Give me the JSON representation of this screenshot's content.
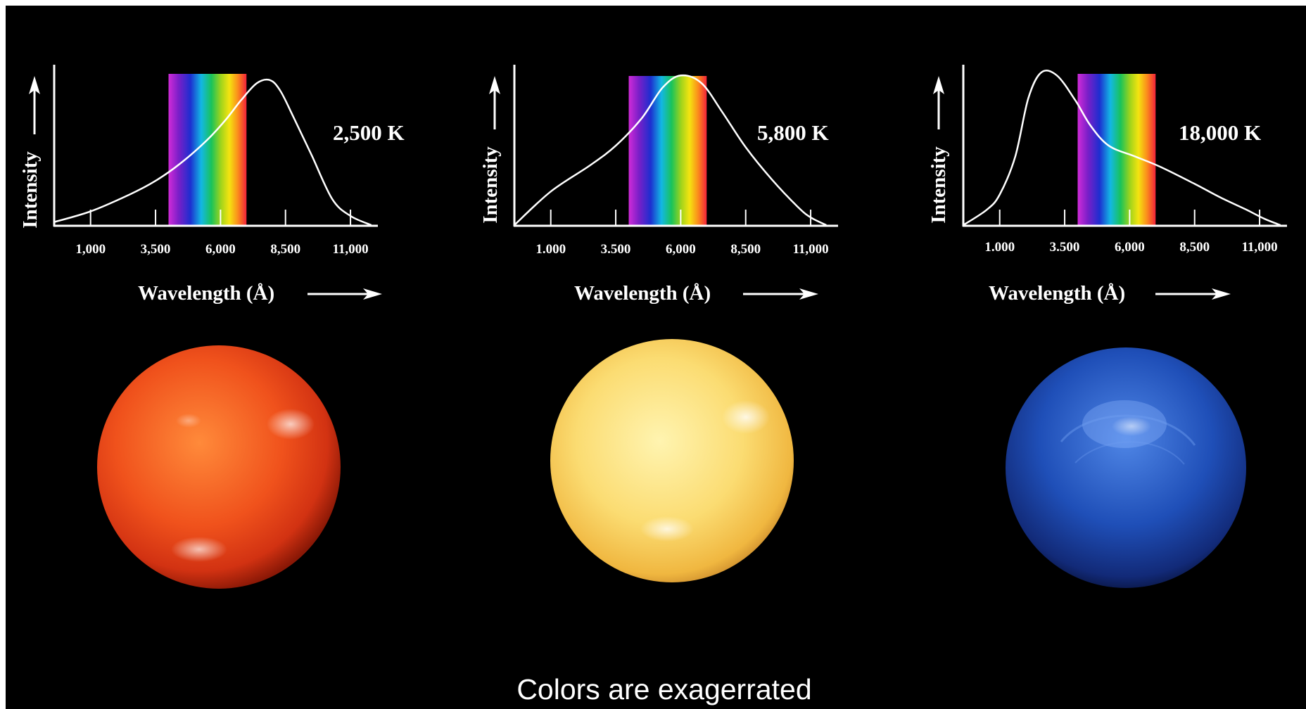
{
  "caption": "Colors are exagerrated",
  "colors": {
    "background": "#000000",
    "axis": "#ffffff",
    "curve": "#ffffff",
    "star_cool": "#e8421a",
    "star_sun": "#f8d45a",
    "star_hot": "#1f4fb8"
  },
  "chart_data": [
    {
      "type": "line",
      "title": "",
      "temperature_label": "2,500 K",
      "xlabel": "Wavelength (Å)",
      "ylabel": "Intensity",
      "x_tick_labels": [
        "1,000",
        "3,500",
        "6,000",
        "8,500",
        "11,000"
      ],
      "x_ticks": [
        1000,
        3500,
        6000,
        8500,
        11000
      ],
      "xlim": [
        -400,
        12000
      ],
      "ylim": [
        0,
        1
      ],
      "visible_band": [
        4000,
        7000
      ],
      "grid": false,
      "series": [
        {
          "x": [
            -400,
            1000,
            2500,
            3500,
            4500,
            5500,
            6200,
            6800,
            7400,
            7900,
            8300,
            8800,
            9500,
            10300,
            11000,
            11800
          ],
          "y": [
            0.02,
            0.09,
            0.2,
            0.29,
            0.41,
            0.56,
            0.69,
            0.82,
            0.93,
            0.95,
            0.88,
            0.71,
            0.46,
            0.17,
            0.06,
            0.0
          ]
        }
      ],
      "star_color": "orange-red"
    },
    {
      "type": "line",
      "title": "",
      "temperature_label": "5,800 K",
      "xlabel": "Wavelength (Å)",
      "ylabel": "Intensity",
      "x_tick_labels": [
        "1.000",
        "3.500",
        "6,000",
        "8,500",
        "11,000"
      ],
      "x_ticks": [
        1000,
        3500,
        6000,
        8500,
        11000
      ],
      "xlim": [
        -400,
        12000
      ],
      "ylim": [
        0,
        1
      ],
      "visible_band": [
        4000,
        7000
      ],
      "grid": false,
      "series": [
        {
          "x": [
            -400,
            1000,
            2500,
            3500,
            4500,
            5300,
            6000,
            6800,
            7600,
            8500,
            9500,
            10500,
            11000,
            11600
          ],
          "y": [
            0.0,
            0.22,
            0.39,
            0.52,
            0.7,
            0.9,
            0.98,
            0.93,
            0.74,
            0.51,
            0.3,
            0.12,
            0.05,
            0.0
          ]
        }
      ],
      "star_color": "yellow"
    },
    {
      "type": "line",
      "title": "",
      "temperature_label": "18,000 K",
      "xlabel": "Wavelength (Å)",
      "ylabel": "Intensity",
      "x_tick_labels": [
        "1.000",
        "3.500",
        "6,000",
        "8,500",
        "11,000"
      ],
      "x_ticks": [
        1000,
        3500,
        6000,
        8500,
        11000
      ],
      "xlim": [
        -400,
        12000
      ],
      "ylim": [
        0,
        1
      ],
      "visible_band": [
        4000,
        7000
      ],
      "grid": false,
      "series": [
        {
          "x": [
            -400,
            500,
            1000,
            1600,
            2100,
            2600,
            3200,
            3900,
            4500,
            5200,
            6200,
            7200,
            8500,
            9500,
            10500,
            11200,
            11800
          ],
          "y": [
            0.0,
            0.1,
            0.2,
            0.45,
            0.83,
            1.0,
            0.98,
            0.82,
            0.65,
            0.52,
            0.45,
            0.38,
            0.27,
            0.18,
            0.1,
            0.04,
            0.0
          ]
        }
      ],
      "star_color": "blue"
    }
  ]
}
